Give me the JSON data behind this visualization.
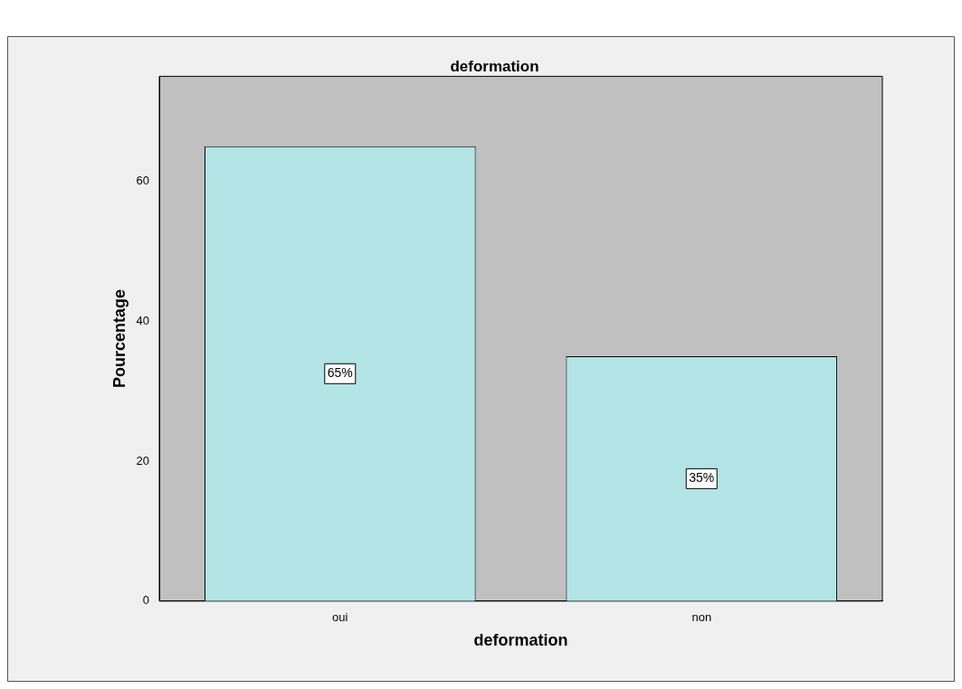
{
  "chart_data": {
    "type": "bar",
    "title": "deformation",
    "xlabel": "deformation",
    "ylabel": "Pourcentage",
    "categories": [
      "oui",
      "non"
    ],
    "values": [
      65,
      35
    ],
    "value_labels": [
      "65%",
      "35%"
    ],
    "color": "#b3e5e6",
    "ylim": [
      0,
      75
    ],
    "yticks": [
      0,
      20,
      40,
      60
    ],
    "grid": false,
    "legend": false
  }
}
